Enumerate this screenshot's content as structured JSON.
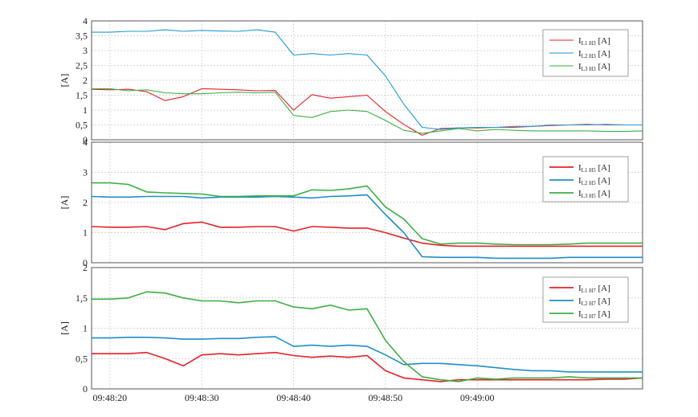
{
  "chart_data": [
    {
      "type": "line",
      "ylabel": "[A]",
      "ylim": [
        0,
        4
      ],
      "yticks": [
        0,
        0.5,
        1,
        1.5,
        2,
        2.5,
        3,
        3.5,
        4
      ],
      "ytick_labels": [
        "0",
        "0,5",
        "1",
        "1,5",
        "2",
        "2,5",
        "3",
        "3,5",
        "4"
      ],
      "xlim": [
        -2,
        58
      ],
      "grid": true,
      "legend_position": "top-right",
      "series": [
        {
          "name": "I",
          "sub": "L1 H3",
          "unit": "[A]",
          "color": "#e8202a",
          "x": [
            -2,
            0,
            2,
            4,
            6,
            8,
            10,
            12,
            14,
            16,
            18,
            20,
            22,
            24,
            26,
            28,
            30,
            32,
            34,
            36,
            38,
            40,
            42,
            44,
            46,
            48,
            50,
            52,
            54,
            56,
            58
          ],
          "y": [
            1.7,
            1.68,
            1.7,
            1.62,
            1.32,
            1.45,
            1.72,
            1.7,
            1.68,
            1.65,
            1.66,
            1.0,
            1.52,
            1.4,
            1.45,
            1.5,
            0.95,
            0.52,
            0.15,
            0.38,
            0.4,
            0.4,
            0.42,
            0.42,
            0.45,
            0.48,
            0.5,
            0.52,
            0.5,
            0.5,
            0.5
          ]
        },
        {
          "name": "I",
          "sub": "L2 H3",
          "unit": "[A]",
          "color": "#1e9ad6",
          "x": [
            -2,
            0,
            2,
            4,
            6,
            8,
            10,
            12,
            14,
            16,
            18,
            20,
            22,
            24,
            26,
            28,
            30,
            32,
            34,
            36,
            38,
            40,
            42,
            44,
            46,
            48,
            50,
            52,
            54,
            56,
            58
          ],
          "y": [
            3.62,
            3.62,
            3.65,
            3.65,
            3.7,
            3.65,
            3.68,
            3.66,
            3.65,
            3.7,
            3.62,
            2.85,
            2.9,
            2.85,
            2.9,
            2.85,
            2.15,
            1.2,
            0.42,
            0.35,
            0.4,
            0.42,
            0.42,
            0.45,
            0.45,
            0.5,
            0.5,
            0.5,
            0.52,
            0.5,
            0.5
          ]
        },
        {
          "name": "I",
          "sub": "L3 H3",
          "unit": "[A]",
          "color": "#3cb043",
          "x": [
            -2,
            0,
            2,
            4,
            6,
            8,
            10,
            12,
            14,
            16,
            18,
            20,
            22,
            24,
            26,
            28,
            30,
            32,
            34,
            36,
            38,
            40,
            42,
            44,
            46,
            48,
            50,
            52,
            54,
            56,
            58
          ],
          "y": [
            1.72,
            1.72,
            1.65,
            1.68,
            1.58,
            1.55,
            1.55,
            1.58,
            1.6,
            1.58,
            1.6,
            0.82,
            0.75,
            0.95,
            1.0,
            0.95,
            0.65,
            0.32,
            0.22,
            0.3,
            0.38,
            0.3,
            0.35,
            0.32,
            0.3,
            0.3,
            0.3,
            0.3,
            0.28,
            0.28,
            0.3
          ]
        }
      ]
    },
    {
      "type": "line",
      "ylabel": "[A]",
      "ylim": [
        0,
        4
      ],
      "yticks": [
        0,
        1,
        2,
        3,
        4
      ],
      "ytick_labels": [
        "0",
        "1",
        "2",
        "3",
        "4"
      ],
      "xlim": [
        -2,
        58
      ],
      "grid": true,
      "legend_position": "top-right",
      "series": [
        {
          "name": "I",
          "sub": "L1 H5",
          "unit": "[A]",
          "color": "#e8202a",
          "x": [
            -2,
            0,
            2,
            4,
            6,
            8,
            10,
            12,
            14,
            16,
            18,
            20,
            22,
            24,
            26,
            28,
            30,
            32,
            34,
            36,
            38,
            40,
            42,
            44,
            46,
            48,
            50,
            52,
            54,
            56,
            58
          ],
          "y": [
            1.2,
            1.18,
            1.18,
            1.2,
            1.1,
            1.3,
            1.35,
            1.18,
            1.18,
            1.2,
            1.2,
            1.05,
            1.2,
            1.18,
            1.15,
            1.15,
            1.0,
            0.82,
            0.65,
            0.58,
            0.55,
            0.55,
            0.55,
            0.55,
            0.55,
            0.55,
            0.55,
            0.55,
            0.55,
            0.55,
            0.55
          ]
        },
        {
          "name": "I",
          "sub": "L2 H5",
          "unit": "[A]",
          "color": "#1f8ec8",
          "x": [
            -2,
            0,
            2,
            4,
            6,
            8,
            10,
            12,
            14,
            16,
            18,
            20,
            22,
            24,
            26,
            28,
            30,
            32,
            34,
            36,
            38,
            40,
            42,
            44,
            46,
            48,
            50,
            52,
            54,
            56,
            58
          ],
          "y": [
            2.2,
            2.18,
            2.18,
            2.2,
            2.2,
            2.2,
            2.15,
            2.18,
            2.18,
            2.18,
            2.2,
            2.18,
            2.15,
            2.2,
            2.22,
            2.25,
            1.6,
            1.0,
            0.2,
            0.18,
            0.18,
            0.18,
            0.15,
            0.15,
            0.15,
            0.15,
            0.18,
            0.18,
            0.18,
            0.18,
            0.18
          ]
        },
        {
          "name": "I",
          "sub": "L3 H5",
          "unit": "[A]",
          "color": "#3cb043",
          "x": [
            -2,
            0,
            2,
            4,
            6,
            8,
            10,
            12,
            14,
            16,
            18,
            20,
            22,
            24,
            26,
            28,
            30,
            32,
            34,
            36,
            38,
            40,
            42,
            44,
            46,
            48,
            50,
            52,
            54,
            56,
            58
          ],
          "y": [
            2.65,
            2.65,
            2.6,
            2.35,
            2.32,
            2.3,
            2.28,
            2.2,
            2.2,
            2.22,
            2.22,
            2.22,
            2.42,
            2.4,
            2.45,
            2.55,
            1.85,
            1.45,
            0.8,
            0.62,
            0.65,
            0.65,
            0.62,
            0.6,
            0.6,
            0.6,
            0.62,
            0.65,
            0.65,
            0.65,
            0.65
          ]
        }
      ]
    },
    {
      "type": "line",
      "ylabel": "[A]",
      "ylim": [
        0,
        2
      ],
      "yticks": [
        0,
        0.5,
        1,
        1.5,
        2
      ],
      "ytick_labels": [
        "0",
        "0,5",
        "1",
        "1,5",
        "2"
      ],
      "xlim": [
        -2,
        58
      ],
      "xticks": [
        0,
        10,
        20,
        30,
        40,
        50,
        60
      ],
      "xtick_labels": [
        "09:48:20",
        "09:48:30",
        "09:48:40",
        "09:48:50",
        "09:49:00"
      ],
      "xtick_label_positions": [
        0,
        10,
        20,
        30,
        40
      ],
      "grid": true,
      "legend_position": "top-right",
      "series": [
        {
          "name": "I",
          "sub": "L1 H7",
          "unit": "[A]",
          "color": "#e8202a",
          "x": [
            -2,
            0,
            2,
            4,
            6,
            8,
            10,
            12,
            14,
            16,
            18,
            20,
            22,
            24,
            26,
            28,
            30,
            32,
            34,
            36,
            38,
            40,
            42,
            44,
            46,
            48,
            50,
            52,
            54,
            56,
            58
          ],
          "y": [
            0.58,
            0.58,
            0.58,
            0.6,
            0.5,
            0.38,
            0.56,
            0.58,
            0.56,
            0.58,
            0.6,
            0.55,
            0.52,
            0.54,
            0.52,
            0.55,
            0.3,
            0.18,
            0.15,
            0.12,
            0.15,
            0.15,
            0.15,
            0.15,
            0.15,
            0.15,
            0.15,
            0.15,
            0.16,
            0.16,
            0.18
          ]
        },
        {
          "name": "I",
          "sub": "L2 H7",
          "unit": "[A]",
          "color": "#1f8ec8",
          "x": [
            -2,
            0,
            2,
            4,
            6,
            8,
            10,
            12,
            14,
            16,
            18,
            20,
            22,
            24,
            26,
            28,
            30,
            32,
            34,
            36,
            38,
            40,
            42,
            44,
            46,
            48,
            50,
            52,
            54,
            56,
            58
          ],
          "y": [
            0.84,
            0.84,
            0.85,
            0.85,
            0.84,
            0.82,
            0.82,
            0.83,
            0.83,
            0.85,
            0.86,
            0.7,
            0.72,
            0.7,
            0.72,
            0.7,
            0.56,
            0.4,
            0.42,
            0.42,
            0.4,
            0.38,
            0.35,
            0.32,
            0.3,
            0.3,
            0.28,
            0.28,
            0.28,
            0.28,
            0.28
          ]
        },
        {
          "name": "I",
          "sub": "L2 H7",
          "unit": "[A]",
          "color": "#3cb043",
          "x": [
            -2,
            0,
            2,
            4,
            6,
            8,
            10,
            12,
            14,
            16,
            18,
            20,
            22,
            24,
            26,
            28,
            30,
            32,
            34,
            36,
            38,
            40,
            42,
            44,
            46,
            48,
            50,
            52,
            54,
            56,
            58
          ],
          "y": [
            1.48,
            1.48,
            1.5,
            1.6,
            1.58,
            1.5,
            1.45,
            1.45,
            1.42,
            1.45,
            1.45,
            1.35,
            1.32,
            1.38,
            1.3,
            1.32,
            0.8,
            0.45,
            0.2,
            0.15,
            0.12,
            0.18,
            0.16,
            0.18,
            0.18,
            0.18,
            0.2,
            0.18,
            0.18,
            0.18,
            0.18
          ]
        }
      ]
    }
  ]
}
